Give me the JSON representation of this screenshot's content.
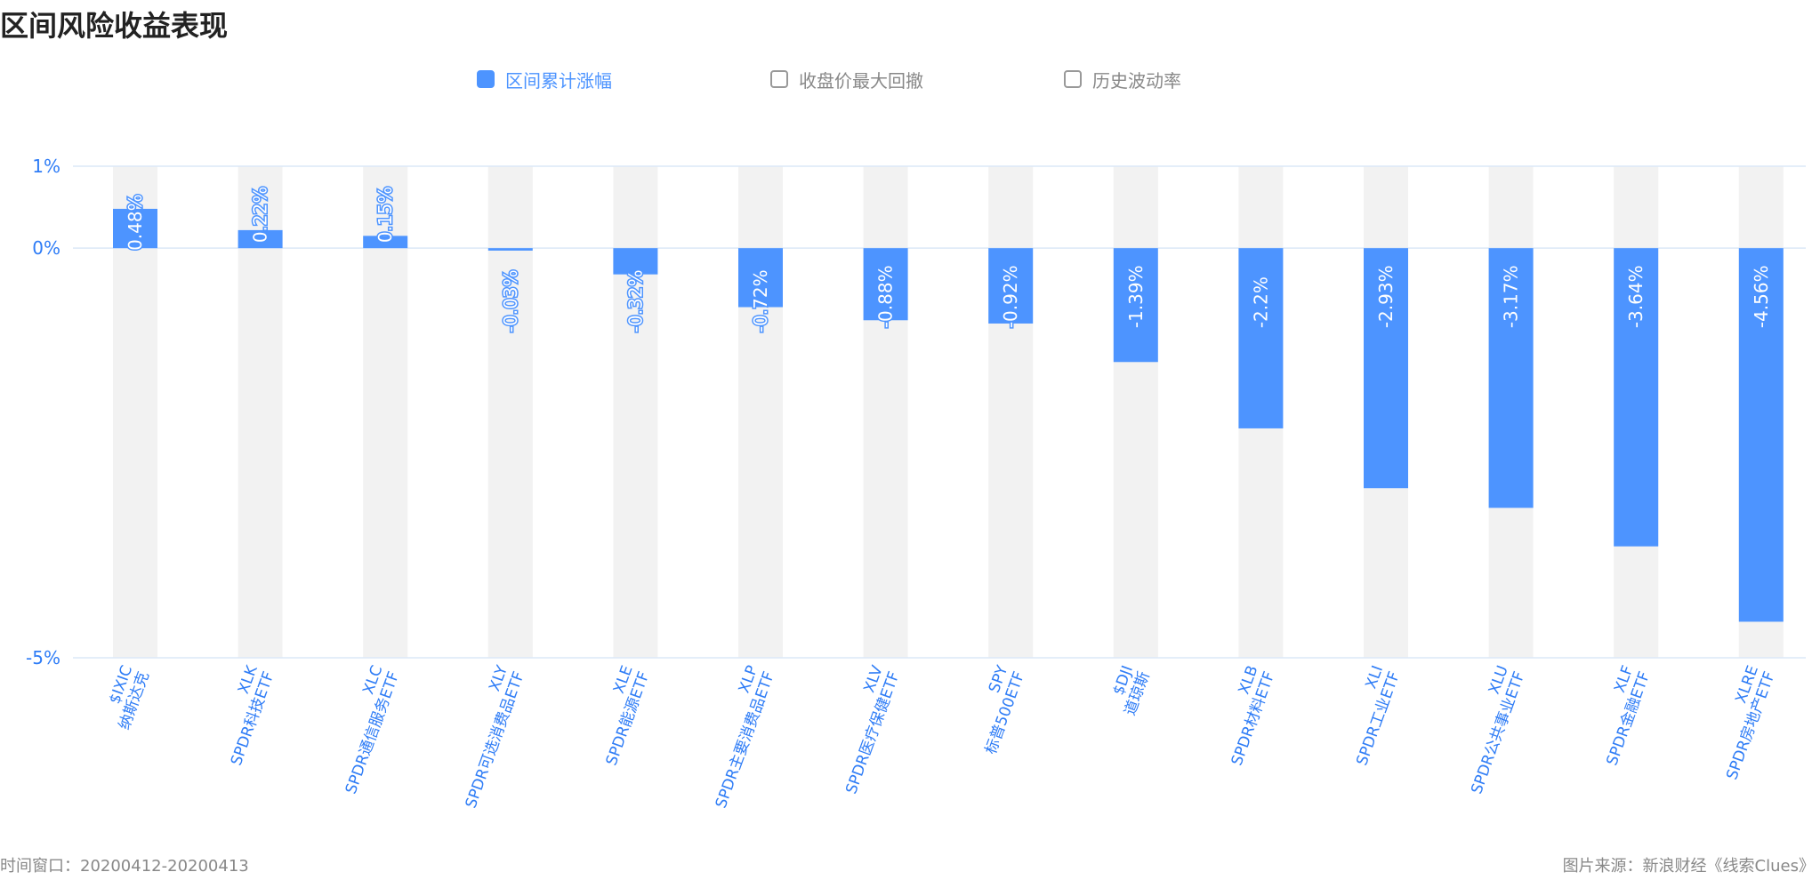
{
  "title": "区间风险收益表现",
  "legend": [
    {
      "label": "区间累计涨幅",
      "active": true
    },
    {
      "label": "收盘价最大回撤",
      "active": false
    },
    {
      "label": "历史波动率",
      "active": false
    }
  ],
  "footer": {
    "window": "时间窗口：20200412-20200413",
    "source": "图片来源：新浪财经《线索Clues》"
  },
  "colors": {
    "bar": "#4d94ff",
    "track": "#f2f2f2",
    "axis_text": "#2e7cf6",
    "grid": "#dbe8f7"
  },
  "chart_data": {
    "type": "bar",
    "title": "",
    "categories": [
      [
        "$IXIC",
        "纳斯达克"
      ],
      [
        "XLK",
        "SPDR科技ETF"
      ],
      [
        "XLC",
        "SPDR通信服务ETF"
      ],
      [
        "XLY",
        "SPDR可选消费品ETF"
      ],
      [
        "XLE",
        "SPDR能源ETF"
      ],
      [
        "XLP",
        "SPDR主要消费品ETF"
      ],
      [
        "XLV",
        "SPDR医疗保健ETF"
      ],
      [
        "SPY",
        "标普500ETF"
      ],
      [
        "$DJI",
        "道琼斯"
      ],
      [
        "XLB",
        "SPDR材料ETF"
      ],
      [
        "XLI",
        "SPDR工业ETF"
      ],
      [
        "XLU",
        "SPDR公共事业ETF"
      ],
      [
        "XLF",
        "SPDR金融ETF"
      ],
      [
        "XLRE",
        "SPDR房地产ETF"
      ]
    ],
    "values": [
      0.48,
      0.22,
      0.15,
      -0.03,
      -0.32,
      -0.72,
      -0.88,
      -0.92,
      -1.39,
      -2.2,
      -2.93,
      -3.17,
      -3.64,
      -4.56
    ],
    "value_labels": [
      "0.48%",
      "0.22%",
      "0.15%",
      "-0.03%",
      "-0.32%",
      "-0.72%",
      "-0.88%",
      "-0.92%",
      "-1.39%",
      "-2.2%",
      "-2.93%",
      "-3.17%",
      "-3.64%",
      "-4.56%"
    ],
    "y_ticks": [
      1,
      0,
      -5
    ],
    "y_tick_labels": [
      "1%",
      "0%",
      "-5%"
    ],
    "ylim": [
      -5,
      1
    ],
    "xlabel": "",
    "ylabel": "",
    "legend_position": "top"
  }
}
